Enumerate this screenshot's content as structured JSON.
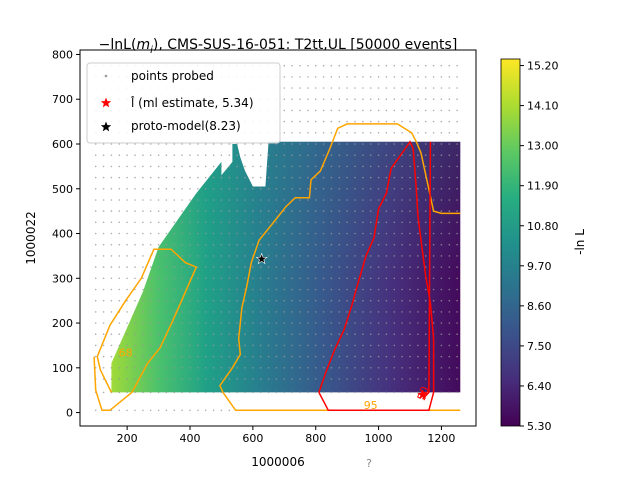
{
  "chart_data": {
    "type": "heatmap",
    "title_prefix": "−lnL(",
    "title_var": "m",
    "title_sub": "i",
    "title_suffix": "), CMS-SUS-16-051: T2tt,UL [50000 events]",
    "xlabel": "1000006",
    "ylabel": "1000022",
    "footer_mark": "?",
    "xlim": [
      50,
      1310
    ],
    "ylim": [
      -30,
      810
    ],
    "xticks": [
      200,
      400,
      600,
      800,
      1000,
      1200
    ],
    "yticks": [
      0,
      100,
      200,
      300,
      400,
      500,
      600,
      700,
      800
    ],
    "colorbar": {
      "label": "-ln L",
      "min": 5.3,
      "max": 15.38,
      "ticks": [
        "5.30",
        "6.40",
        "7.50",
        "8.60",
        "9.70",
        "10.80",
        "11.90",
        "13.00",
        "14.10",
        "15.20"
      ],
      "colors": [
        "#440154",
        "#472d7b",
        "#3b528b",
        "#2c728e",
        "#21918c",
        "#28ae80",
        "#5ec962",
        "#addc30",
        "#fde725"
      ]
    },
    "heatmap_region": [
      [
        150,
        45
      ],
      [
        150,
        110
      ],
      [
        250,
        270
      ],
      [
        300,
        370
      ],
      [
        420,
        490
      ],
      [
        500,
        560
      ],
      [
        500,
        530
      ],
      [
        535,
        560
      ],
      [
        535,
        600
      ],
      [
        550,
        600
      ],
      [
        560,
        570
      ],
      [
        575,
        540
      ],
      [
        600,
        505
      ],
      [
        640,
        505
      ],
      [
        650,
        605
      ],
      [
        1260,
        605
      ],
      [
        1260,
        45
      ]
    ],
    "ml_estimate_point": {
      "x": 1140,
      "y": 40,
      "color": "#ff0000"
    },
    "proto_model_point": {
      "x": 628,
      "y": 343,
      "color": "#000000"
    },
    "contours": [
      {
        "name": "68",
        "color": "#ffa500",
        "lines": [
          [
            [
              150,
              45
            ],
            [
              115,
              95
            ],
            [
              105,
              125
            ],
            [
              145,
              195
            ],
            [
              195,
              250
            ],
            [
              245,
              300
            ],
            [
              285,
              365
            ],
            [
              340,
              365
            ],
            [
              385,
              335
            ],
            [
              420,
              325
            ],
            [
              370,
              245
            ],
            [
              345,
              205
            ],
            [
              305,
              145
            ],
            [
              265,
              110
            ],
            [
              215,
              45
            ],
            [
              145,
              5
            ],
            [
              120,
              5
            ],
            [
              100,
              50
            ],
            [
              95,
              125
            ]
          ],
          [
            [
              505,
              45
            ],
            [
              545,
              5
            ],
            [
              1260,
              5
            ]
          ],
          [
            [
              505,
              45
            ],
            [
              495,
              60
            ],
            [
              535,
              100
            ],
            [
              560,
              130
            ],
            [
              555,
              165
            ],
            [
              565,
              235
            ],
            [
              580,
              280
            ],
            [
              595,
              335
            ],
            [
              620,
              385
            ],
            [
              660,
              420
            ],
            [
              705,
              460
            ],
            [
              735,
              480
            ],
            [
              780,
              480
            ],
            [
              785,
              520
            ],
            [
              815,
              540
            ],
            [
              845,
              590
            ],
            [
              870,
              635
            ],
            [
              900,
              645
            ],
            [
              1060,
              645
            ],
            [
              1105,
              625
            ],
            [
              1120,
              605
            ],
            [
              1135,
              580
            ],
            [
              1175,
              450
            ],
            [
              1200,
              445
            ],
            [
              1260,
              445
            ]
          ]
        ],
        "labels": [
          {
            "text": "95",
            "x": 975,
            "y": 8
          },
          {
            "text": "68",
            "x": 195,
            "y": 125
          }
        ]
      },
      {
        "name": "50",
        "color": "#ff0000",
        "lines": [
          [
            [
              810,
              45
            ],
            [
              840,
              5
            ],
            [
              1160,
              5
            ],
            [
              1175,
              45
            ],
            [
              1175,
              165
            ],
            [
              1165,
              245
            ],
            [
              1150,
              305
            ],
            [
              1135,
              385
            ],
            [
              1125,
              440
            ],
            [
              1120,
              500
            ],
            [
              1115,
              545
            ],
            [
              1110,
              590
            ],
            [
              1100,
              605
            ],
            [
              1085,
              590
            ],
            [
              1040,
              545
            ],
            [
              1025,
              490
            ],
            [
              1000,
              455
            ],
            [
              985,
              390
            ],
            [
              960,
              350
            ],
            [
              935,
              290
            ],
            [
              915,
              240
            ],
            [
              890,
              185
            ],
            [
              860,
              140
            ],
            [
              835,
              95
            ],
            [
              810,
              45
            ]
          ],
          [
            [
              1165,
              605
            ],
            [
              1160,
              45
            ],
            [
              1140,
              30
            ]
          ]
        ],
        "labels": [
          {
            "text": "50",
            "x": 1153,
            "y": 40
          }
        ]
      }
    ],
    "scatter_points": {
      "name": "points probed",
      "color": "#999999",
      "x": [
        100,
        125,
        150,
        175,
        200,
        225,
        250,
        275,
        300,
        325,
        350,
        375,
        400,
        425,
        450,
        475,
        500,
        525,
        550,
        575,
        600,
        625,
        650,
        675,
        700,
        725,
        750,
        775,
        800,
        825,
        850,
        875,
        900,
        925,
        950,
        975,
        1000,
        1025,
        1050,
        1075,
        1100,
        1125,
        1150,
        1175,
        1200,
        1225,
        1250
      ],
      "y": [
        5,
        45,
        75,
        100,
        125,
        150,
        175,
        200,
        225,
        250,
        275,
        300,
        325,
        350,
        375,
        400,
        425,
        450,
        475,
        500,
        525,
        550,
        575,
        600,
        625,
        650,
        675,
        700,
        725,
        750,
        775
      ]
    },
    "legend": {
      "placement": "upper left",
      "entries": [
        {
          "label": "points probed",
          "marker": "dot",
          "color": "#999999"
        },
        {
          "label": "l̂ (ml estimate, 5.34)",
          "marker": "star",
          "color": "#ff0000"
        },
        {
          "label": "proto-model(8.23)",
          "marker": "star",
          "color": "#000000"
        }
      ]
    }
  }
}
